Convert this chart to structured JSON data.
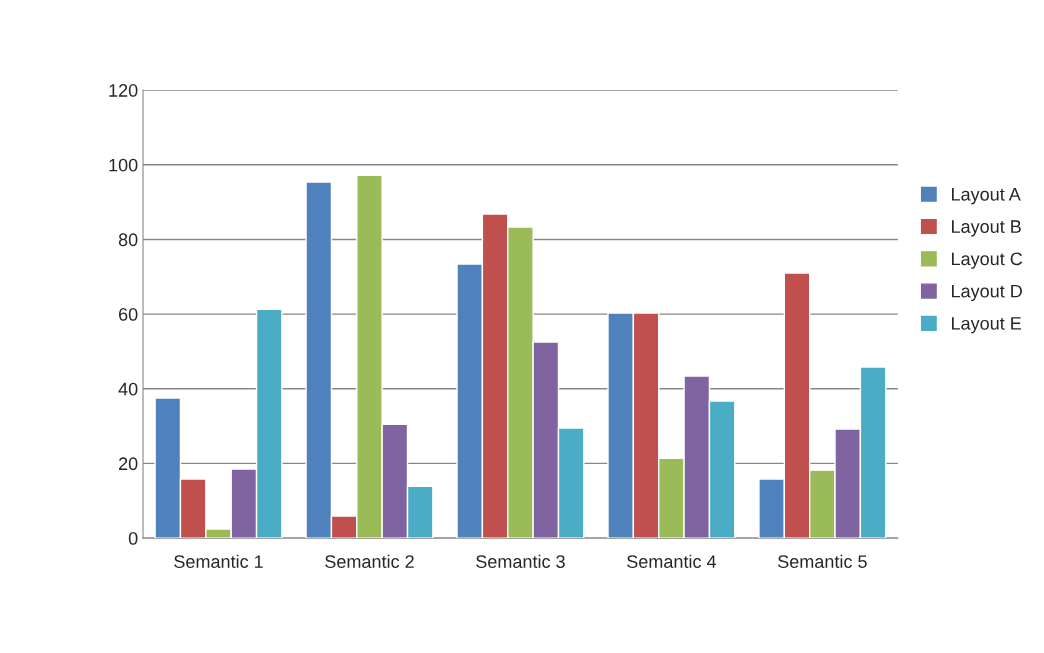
{
  "chart_data": {
    "type": "bar",
    "categories": [
      "Semantic 1",
      "Semantic 2",
      "Semantic 3",
      "Semantic 4",
      "Semantic 5"
    ],
    "series": [
      {
        "name": "Layout A",
        "color": "#4f81bd",
        "values": [
          37.5,
          95.4,
          73.4,
          60.3,
          15.8
        ]
      },
      {
        "name": "Layout B",
        "color": "#c0504d",
        "values": [
          15.8,
          5.9,
          86.8,
          60.3,
          71
        ]
      },
      {
        "name": "Layout C",
        "color": "#9bbb59",
        "values": [
          2.4,
          97.2,
          83.3,
          21.4,
          18.2
        ]
      },
      {
        "name": "Layout D",
        "color": "#8064a2",
        "values": [
          18.5,
          30.5,
          52.5,
          43.4,
          29.2
        ]
      },
      {
        "name": "Layout E",
        "color": "#4bacc6",
        "values": [
          61.3,
          13.9,
          29.5,
          36.7,
          45.8
        ]
      }
    ],
    "ylim": [
      0,
      120
    ],
    "yticks": [
      0,
      20,
      40,
      60,
      80,
      100,
      120
    ],
    "grid": "y",
    "legend": "right"
  }
}
